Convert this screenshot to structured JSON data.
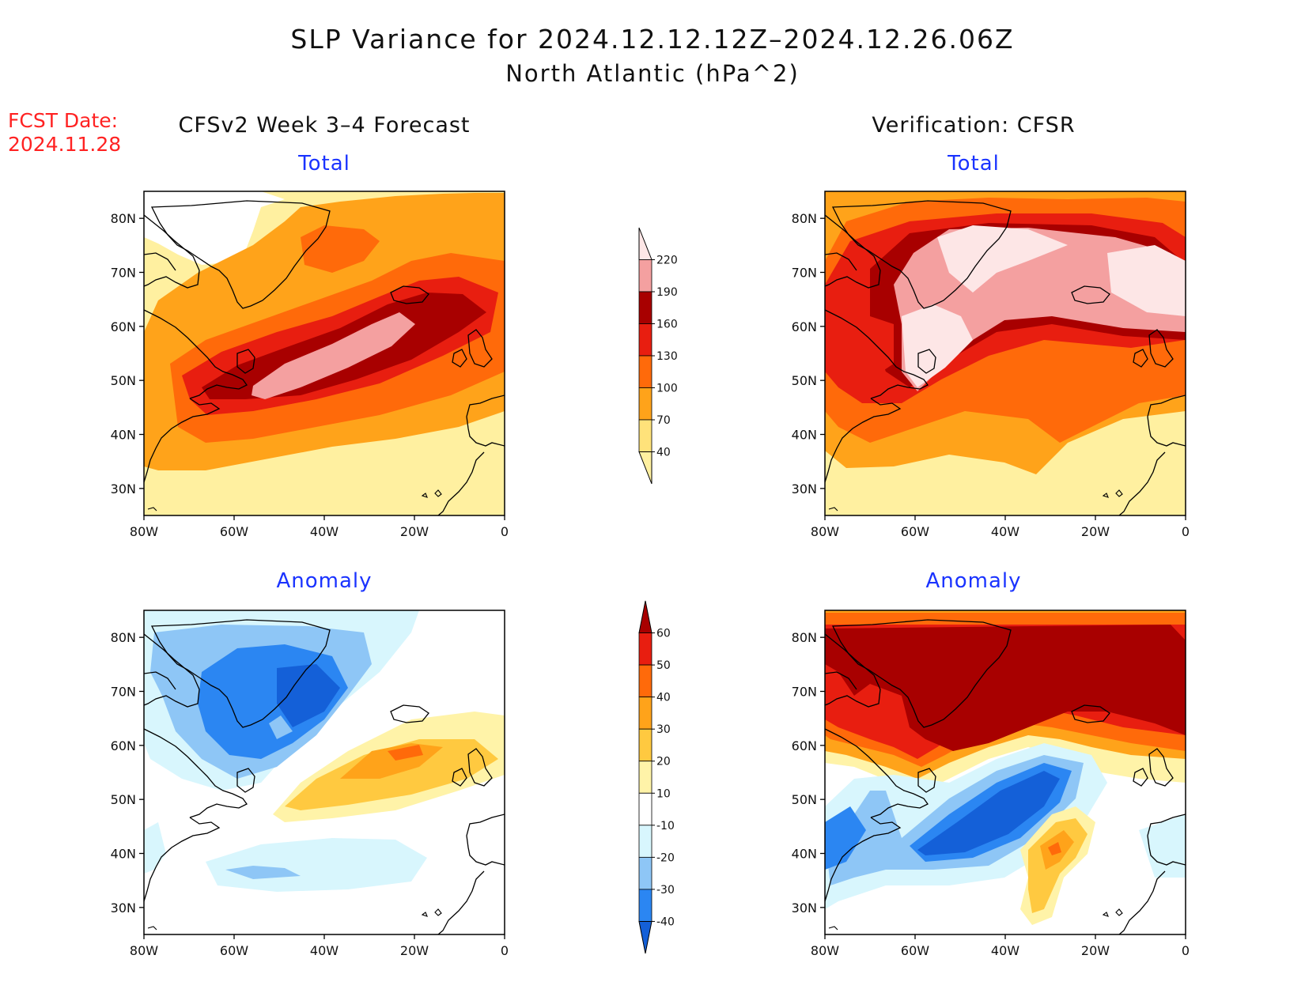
{
  "title": {
    "line1": "SLP Variance for 2024.12.12.12Z–2024.12.26.06Z",
    "line2": "North Atlantic (hPa^2)"
  },
  "fcst_date": {
    "label": "FCST Date:",
    "value": "2024.11.28"
  },
  "columns": {
    "left": "CFSv2 Week 3–4 Forecast",
    "right": "Verification: CFSR"
  },
  "panels": {
    "forecast_total": "Total",
    "verification_total": "Total",
    "forecast_anomaly": "Anomaly",
    "verification_anomaly": "Anomaly"
  },
  "axes": {
    "lon_ticks": [
      "80W",
      "60W",
      "40W",
      "20W",
      "0"
    ],
    "lon_values": [
      -80,
      -60,
      -40,
      -20,
      0
    ],
    "lat_ticks": [
      "80N",
      "70N",
      "60N",
      "50N",
      "40N",
      "30N"
    ],
    "lat_values": [
      80,
      70,
      60,
      50,
      40,
      30
    ],
    "lon_range": [
      -80,
      0
    ],
    "lat_range": [
      25,
      85
    ]
  },
  "colorbars": {
    "total": {
      "levels": [
        "40",
        "70",
        "100",
        "130",
        "160",
        "190",
        "220"
      ],
      "colors": [
        "#fff0a0",
        "#ffe27a",
        "#ffa31a",
        "#ff6a0a",
        "#e81e10",
        "#a80000",
        "#f4a0a0",
        "#fde6e6"
      ]
    },
    "anomaly": {
      "levels": [
        "-40",
        "-30",
        "-20",
        "-10",
        "10",
        "20",
        "30",
        "40",
        "50",
        "60"
      ],
      "colors": [
        "#1460d8",
        "#2b86f2",
        "#8ec6f6",
        "#d8f6fd",
        "#ffffff",
        "#fff3a8",
        "#ffc940",
        "#ffa31a",
        "#ff6a0a",
        "#e81e10",
        "#a80000"
      ]
    }
  },
  "palette": {
    "title_red": "#ff2222",
    "panel_blue": "#1a33ff"
  }
}
